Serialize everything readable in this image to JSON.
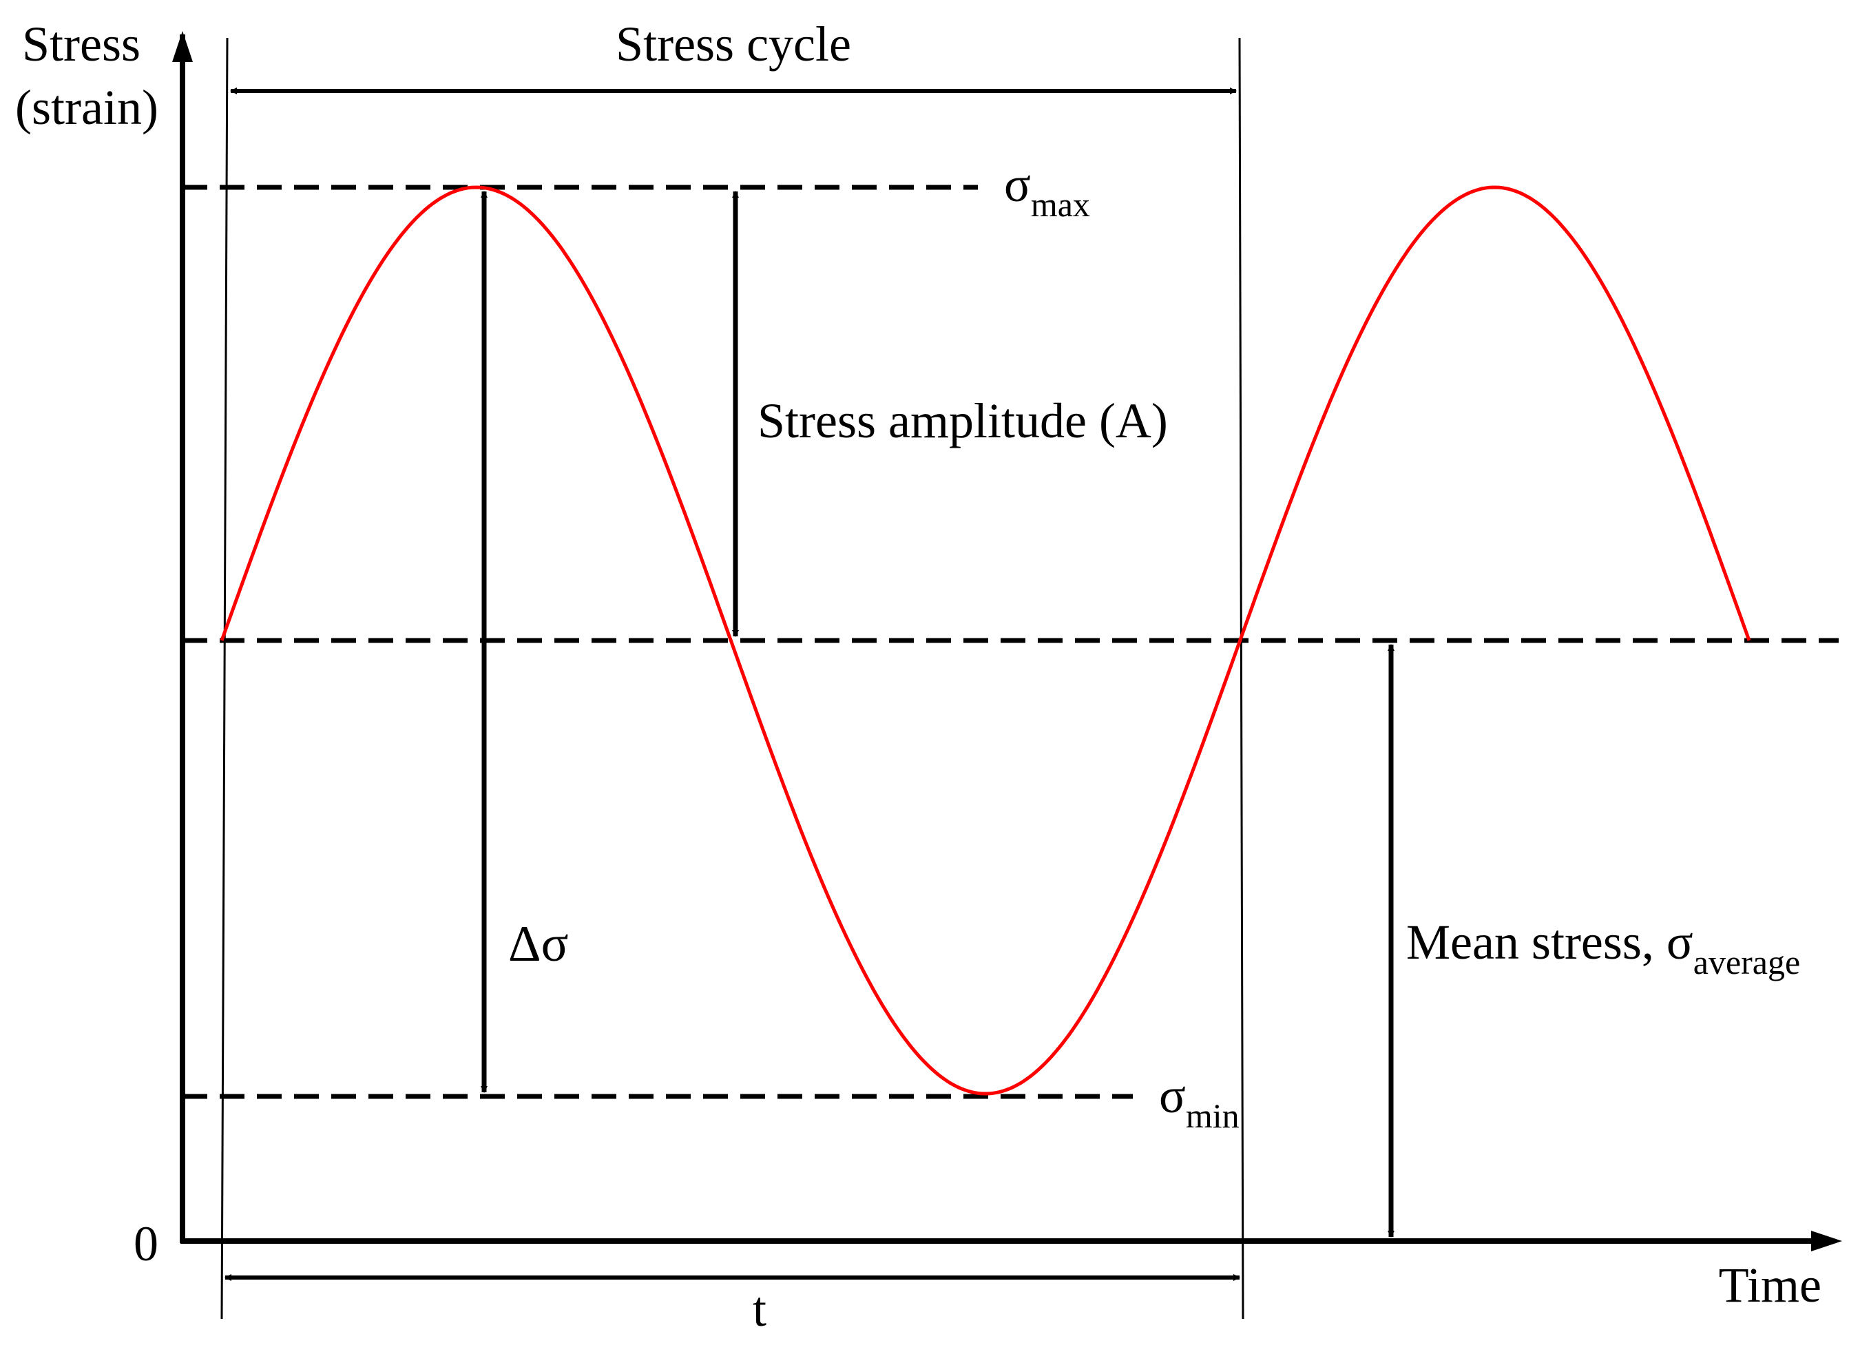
{
  "axes": {
    "y_label_line1": "Stress",
    "y_label_line2": "(strain)",
    "x_label": "Time",
    "origin_label": "0"
  },
  "labels": {
    "stress_cycle": "Stress cycle",
    "stress_amplitude": "Stress amplitude (A)",
    "delta_sigma": "Δσ",
    "sigma_max_base": "σ",
    "sigma_max_sub": "max",
    "sigma_min_base": "σ",
    "sigma_min_sub": "min",
    "mean_stress_base": "Mean stress, σ",
    "mean_stress_sub": "average",
    "period": "t"
  },
  "colors": {
    "curve": "#ff0000",
    "lines": "#000000",
    "background": "#ffffff"
  },
  "curve": {
    "type": "sine",
    "cycles_shown": 1.5,
    "mean_level": 0.5,
    "amplitude": 0.5
  }
}
